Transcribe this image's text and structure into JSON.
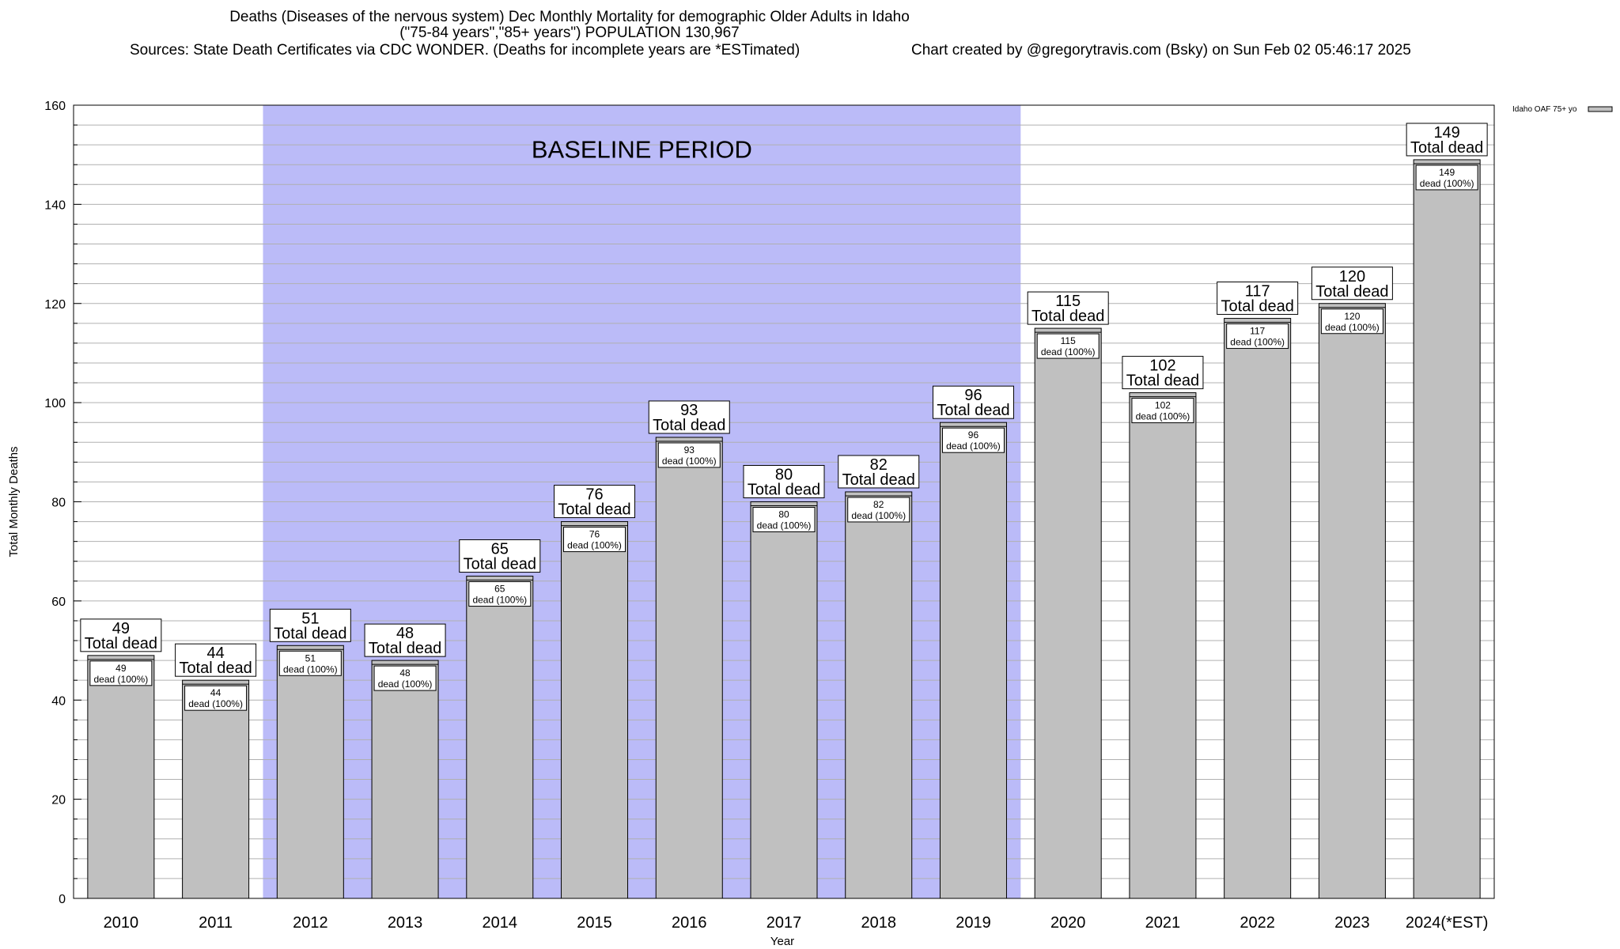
{
  "header": {
    "title_line1": "Deaths (Diseases of the nervous system) Dec Monthly Mortality for demographic Older Adults in Idaho",
    "title_line2": "(\"75-84 years\",\"85+ years\") POPULATION 130,967",
    "sources": "Sources: State Death Certificates via CDC WONDER. (Deaths for incomplete years are *ESTimated)",
    "credit": "Chart created by @gregorytravis.com (Bsky) on Sun Feb 02 05:46:17 2025"
  },
  "chart_data": {
    "type": "bar",
    "xlabel": "Year",
    "ylabel": "Total Monthly Deaths",
    "ylim": [
      0,
      160
    ],
    "y_ticks": [
      0,
      20,
      40,
      60,
      80,
      100,
      120,
      140,
      160
    ],
    "grid": true,
    "legend": {
      "label": "Idaho OAF 75+ yo",
      "position": "top-right"
    },
    "categories": [
      "2010",
      "2011",
      "2012",
      "2013",
      "2014",
      "2015",
      "2016",
      "2017",
      "2018",
      "2019",
      "2020",
      "2021",
      "2022",
      "2023",
      "2024(*EST)"
    ],
    "series": [
      {
        "name": "Idaho OAF 75+ yo",
        "values": [
          49,
          44,
          51,
          48,
          65,
          76,
          93,
          80,
          82,
          96,
          115,
          102,
          117,
          120,
          149
        ]
      }
    ],
    "total_label": "Total dead",
    "inner_label": "dead (100%)",
    "baseline": {
      "label": "BASELINE PERIOD",
      "start": "2012",
      "end": "2019"
    },
    "colors": {
      "bar": "#c0c0c0",
      "baseline": "#bbbbf8",
      "grid": "#b0b0b0"
    }
  }
}
